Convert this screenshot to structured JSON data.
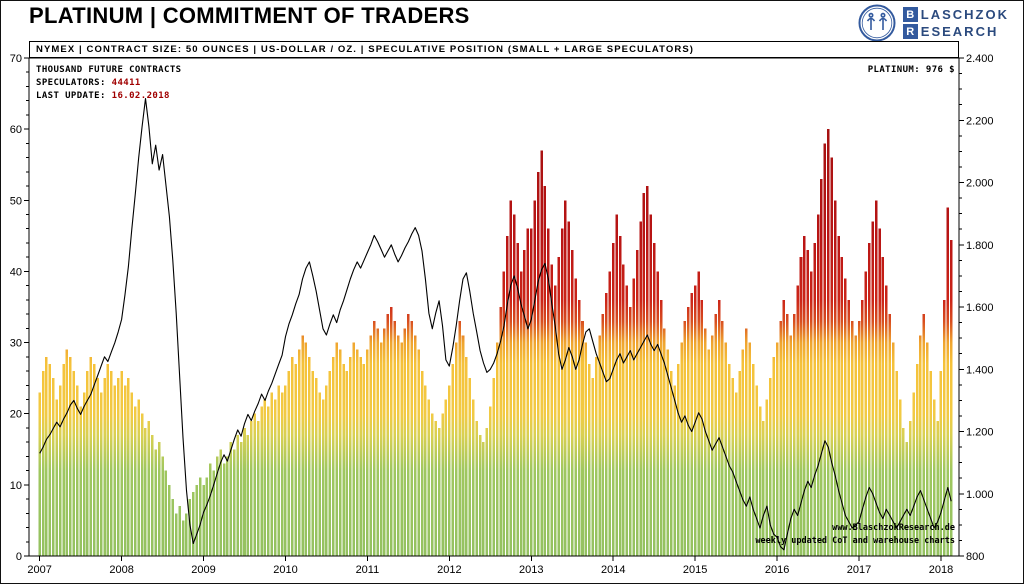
{
  "page": {
    "title": "PLATINUM | COMMITMENT OF TRADERS"
  },
  "logo": {
    "line1_initial": "B",
    "line1_rest": "LASCHZOK",
    "line2_initial": "R",
    "line2_rest": "ESEARCH",
    "brand_blue": "#335a9e"
  },
  "info_bar": {
    "text": "NYMEX | CONTRACT SIZE: 50 OUNCES | US-DOLLAR / OZ. | SPECULATIVE POSITION (SMALL + LARGE SPECULATORS)"
  },
  "annotations": {
    "axis_note": "THOUSAND FUTURE CONTRACTS",
    "speculators_label": "SPECULATORS:",
    "speculators_value": "44411",
    "last_update_label": "LAST UPDATE:",
    "last_update_value": "16.02.2018",
    "price_label": "PLATINUM:",
    "price_value": "976 $",
    "watermark_line1": "www.BlaschzokResearch.de",
    "watermark_line2": "weekly updated CoT and warehouse charts",
    "accent_red": "#a00000"
  },
  "chart_data": {
    "type": "combo",
    "title": "PLATINUM | COMMITMENT OF TRADERS",
    "subtitle": "NYMEX | CONTRACT SIZE: 50 OUNCES | US-DOLLAR / OZ. | SPECULATIVE POSITION (SMALL + LARGE SPECULATORS)",
    "x_domain": [
      2006.87,
      2018.22
    ],
    "x_start": 2007.0,
    "x_step_years": 0.0416667,
    "x_ticks": [
      "2007",
      "2008",
      "2009",
      "2010",
      "2011",
      "2012",
      "2013",
      "2014",
      "2015",
      "2016",
      "2017",
      "2018"
    ],
    "left_axis": {
      "min": 0,
      "max": 70,
      "tick_interval": 10,
      "minor_tick": 2,
      "tick_labels": [
        "0",
        "10",
        "20",
        "30",
        "40",
        "50",
        "60",
        "70"
      ]
    },
    "right_axis": {
      "min": 800,
      "max": 2400,
      "tick_interval": 200,
      "minor_tick": 50,
      "tick_labels": [
        "800",
        "1.000",
        "1.200",
        "1.400",
        "1.600",
        "1.800",
        "2.000",
        "2.200",
        "2.400"
      ]
    },
    "grid": false,
    "legend": "none",
    "series": [
      {
        "name": "Speculative position (small + large speculators), thousand future contracts",
        "type": "bars",
        "axis": "left",
        "values": [
          23,
          26,
          28,
          27,
          25,
          22,
          24,
          27,
          29,
          28,
          26,
          24,
          21,
          23,
          26,
          28,
          27,
          25,
          23,
          25,
          27,
          26,
          24,
          25,
          26,
          24,
          25,
          23,
          21,
          22,
          20,
          18,
          19,
          17,
          15,
          16,
          14,
          12,
          10,
          8,
          6,
          7,
          5,
          6,
          8,
          9,
          10,
          11,
          10,
          11,
          13,
          12,
          14,
          15,
          13,
          14,
          16,
          15,
          17,
          16,
          18,
          17,
          19,
          20,
          19,
          21,
          22,
          21,
          23,
          22,
          24,
          23,
          24,
          26,
          28,
          27,
          29,
          31,
          30,
          28,
          26,
          25,
          23,
          22,
          24,
          26,
          28,
          30,
          29,
          27,
          26,
          28,
          30,
          29,
          28,
          27,
          29,
          31,
          33,
          32,
          30,
          32,
          34,
          35,
          33,
          31,
          30,
          32,
          34,
          33,
          31,
          29,
          26,
          24,
          22,
          20,
          19,
          18,
          20,
          22,
          24,
          27,
          30,
          33,
          31,
          28,
          25,
          22,
          19,
          17,
          16,
          18,
          21,
          25,
          30,
          35,
          40,
          45,
          50,
          48,
          44,
          40,
          43,
          46,
          46,
          50,
          54,
          57,
          52,
          46,
          41,
          38,
          42,
          46,
          50,
          47,
          43,
          39,
          36,
          33,
          30,
          27,
          25,
          28,
          31,
          34,
          37,
          40,
          44,
          48,
          45,
          41,
          38,
          35,
          39,
          43,
          47,
          51,
          52,
          48,
          44,
          40,
          36,
          32,
          29,
          26,
          24,
          27,
          30,
          33,
          35,
          37,
          38,
          40,
          36,
          32,
          29,
          31,
          34,
          36,
          33,
          30,
          27,
          25,
          23,
          26,
          29,
          32,
          30,
          27,
          24,
          21,
          19,
          22,
          25,
          28,
          30,
          33,
          36,
          34,
          31,
          34,
          38,
          42,
          45,
          43,
          40,
          44,
          48,
          53,
          58,
          60,
          56,
          50,
          45,
          42,
          39,
          36,
          33,
          31,
          33,
          36,
          40,
          44,
          47,
          50,
          46,
          42,
          38,
          34,
          30,
          26,
          22,
          18,
          16,
          19,
          23,
          27,
          31,
          34,
          30,
          26,
          22,
          19,
          26,
          36,
          49,
          44.4
        ]
      },
      {
        "name": "Platinum price, US-Dollar / oz.",
        "type": "line",
        "axis": "right",
        "color": "#000000",
        "values": [
          1130,
          1150,
          1175,
          1190,
          1210,
          1230,
          1215,
          1240,
          1260,
          1285,
          1300,
          1275,
          1255,
          1280,
          1300,
          1320,
          1350,
          1380,
          1410,
          1440,
          1425,
          1455,
          1485,
          1520,
          1560,
          1640,
          1730,
          1850,
          1960,
          2080,
          2180,
          2270,
          2180,
          2060,
          2120,
          2040,
          2090,
          1990,
          1890,
          1750,
          1580,
          1380,
          1180,
          1010,
          900,
          840,
          870,
          900,
          940,
          965,
          995,
          1030,
          1065,
          1100,
          1125,
          1105,
          1140,
          1175,
          1205,
          1185,
          1225,
          1255,
          1235,
          1265,
          1290,
          1320,
          1300,
          1330,
          1355,
          1385,
          1415,
          1445,
          1505,
          1545,
          1575,
          1610,
          1640,
          1690,
          1725,
          1745,
          1700,
          1650,
          1590,
          1530,
          1510,
          1545,
          1575,
          1550,
          1590,
          1620,
          1655,
          1690,
          1720,
          1745,
          1725,
          1750,
          1775,
          1800,
          1830,
          1810,
          1785,
          1760,
          1780,
          1800,
          1770,
          1745,
          1765,
          1790,
          1810,
          1835,
          1855,
          1830,
          1780,
          1690,
          1580,
          1530,
          1580,
          1620,
          1540,
          1430,
          1410,
          1470,
          1540,
          1620,
          1690,
          1710,
          1650,
          1580,
          1520,
          1460,
          1420,
          1390,
          1400,
          1420,
          1450,
          1490,
          1540,
          1610,
          1670,
          1700,
          1660,
          1610,
          1570,
          1530,
          1560,
          1620,
          1680,
          1720,
          1740,
          1690,
          1610,
          1540,
          1450,
          1400,
          1430,
          1470,
          1440,
          1400,
          1430,
          1480,
          1520,
          1530,
          1490,
          1450,
          1420,
          1390,
          1360,
          1370,
          1400,
          1430,
          1450,
          1420,
          1440,
          1460,
          1430,
          1450,
          1470,
          1490,
          1510,
          1480,
          1460,
          1480,
          1450,
          1420,
          1380,
          1340,
          1300,
          1260,
          1230,
          1250,
          1220,
          1200,
          1230,
          1260,
          1240,
          1200,
          1170,
          1140,
          1160,
          1180,
          1150,
          1120,
          1090,
          1070,
          1040,
          1010,
          980,
          960,
          990,
          950,
          920,
          890,
          930,
          960,
          900,
          870,
          860,
          830,
          820,
          870,
          920,
          950,
          930,
          970,
          1010,
          1040,
          1020,
          1060,
          1090,
          1130,
          1170,
          1150,
          1100,
          1060,
          1010,
          970,
          930,
          910,
          890,
          900,
          910,
          950,
          990,
          1020,
          1000,
          970,
          940,
          920,
          950,
          930,
          910,
          890,
          910,
          930,
          950,
          930,
          960,
          990,
          1010,
          980,
          950,
          920,
          890,
          910,
          940,
          980,
          1020,
          976
        ]
      }
    ],
    "bar_gradient_stops": [
      {
        "value": 0,
        "color": "#94c161"
      },
      {
        "value": 12,
        "color": "#9fc75f"
      },
      {
        "value": 17,
        "color": "#d9d052"
      },
      {
        "value": 20,
        "color": "#f2ca43"
      },
      {
        "value": 27,
        "color": "#f5c23a"
      },
      {
        "value": 30,
        "color": "#efa42f"
      },
      {
        "value": 33,
        "color": "#d84e20"
      },
      {
        "value": 36,
        "color": "#cb2418"
      },
      {
        "value": 45,
        "color": "#b81414"
      },
      {
        "value": 70,
        "color": "#991010"
      }
    ]
  }
}
